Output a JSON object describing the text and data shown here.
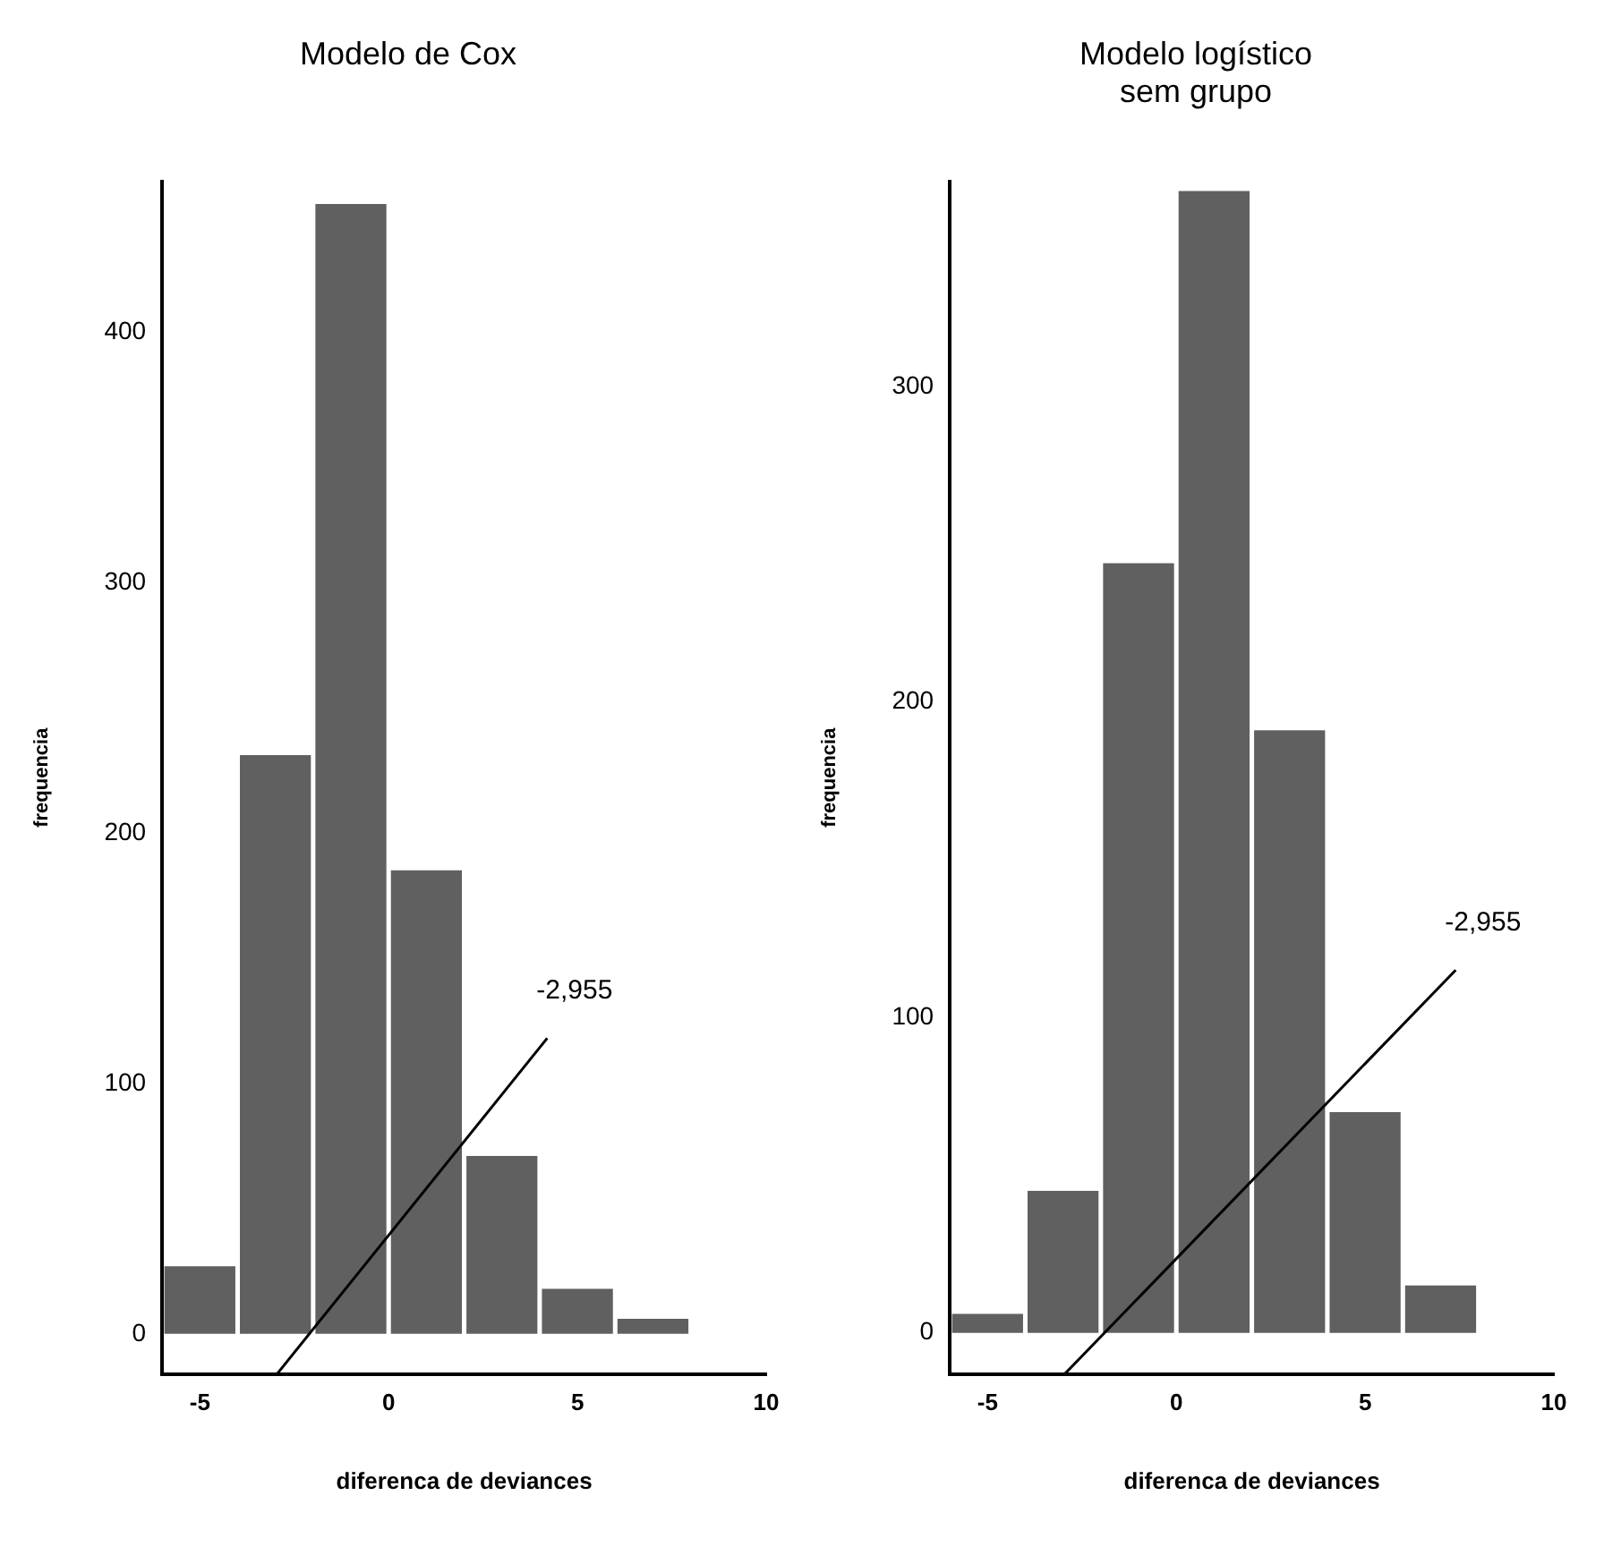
{
  "chart_data": [
    {
      "type": "histogram",
      "title": "Modelo de Cox",
      "xlabel": "diferenca de deviances",
      "ylabel": "frequencia",
      "bins": [
        -6,
        -4,
        -2,
        0,
        2,
        4,
        6,
        8
      ],
      "values": [
        27,
        231,
        451,
        185,
        71,
        18,
        6
      ],
      "color": "#606060",
      "xlim": [
        -6,
        10
      ],
      "xticks": [
        -5,
        0,
        5,
        10
      ],
      "ylim": [
        -16,
        460
      ],
      "yticks": [
        0,
        100,
        200,
        300,
        400
      ],
      "series": [
        {
          "type": "line",
          "x": [
            -2.955,
            4.2
          ],
          "values": [
            -16,
            118
          ],
          "color": "#000000"
        }
      ],
      "annotations": [
        {
          "text": "-2,955",
          "x": 4.2,
          "y": 118
        }
      ]
    },
    {
      "type": "histogram",
      "title": "Modelo logístico sem grupo",
      "xlabel": "diferenca de deviances",
      "ylabel": "frequencia",
      "bins": [
        -6,
        -4,
        -2,
        0,
        2,
        4,
        6,
        8
      ],
      "values": [
        6,
        45,
        244,
        362,
        191,
        70,
        15
      ],
      "color": "#606060",
      "xlim": [
        -6,
        10
      ],
      "xticks": [
        -5,
        0,
        5,
        10
      ],
      "ylim": [
        -13,
        365
      ],
      "yticks": [
        0,
        100,
        200,
        300
      ],
      "series": [
        {
          "type": "line",
          "x": [
            -2.955,
            7.4
          ],
          "values": [
            -13,
            115
          ],
          "color": "#000000"
        }
      ],
      "annotations": [
        {
          "text": "-2,955",
          "x": 7.4,
          "y": 115
        }
      ]
    }
  ]
}
